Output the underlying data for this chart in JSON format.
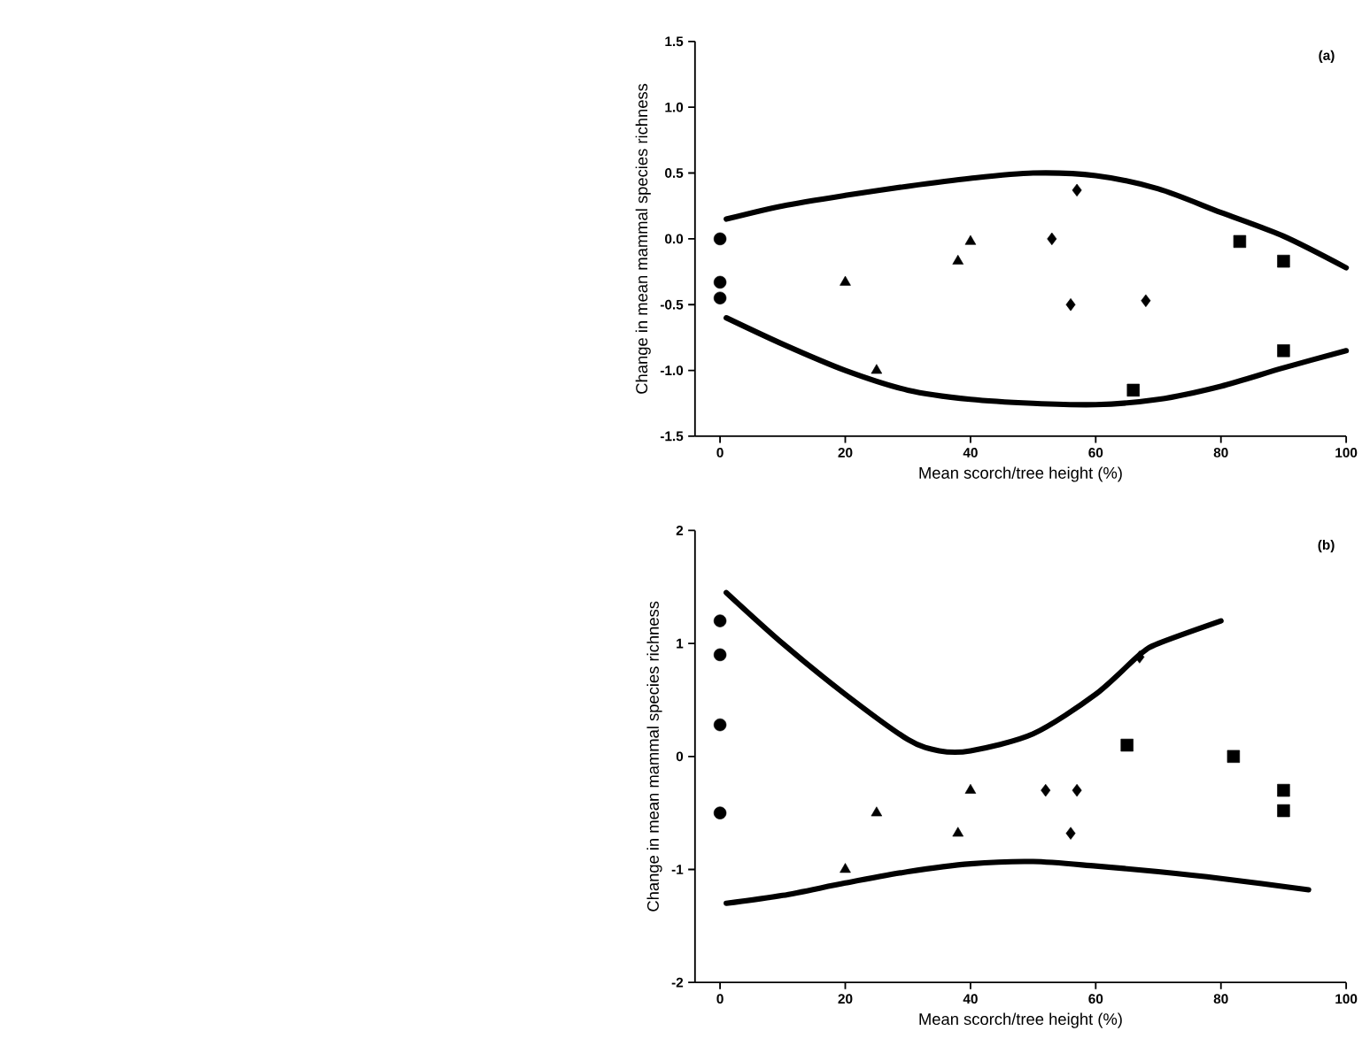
{
  "chart_data": [
    {
      "type": "scatter",
      "xlabel": "Mean scorch/tree height (%)",
      "ylabel": "Change in mean mammal species richness",
      "annotations": [
        "(a)"
      ],
      "xlim": [
        -4,
        100
      ],
      "ylim": [
        -1.5,
        1.5
      ],
      "xticks": [
        0,
        20,
        40,
        60,
        80,
        100
      ],
      "yticks": [
        -1.5,
        {
          "value": -1.0,
          "label": "-1.0"
        },
        -0.5,
        {
          "value": 0.0,
          "label": "0.0"
        },
        0.5,
        {
          "value": 1.0,
          "label": "1.0"
        },
        1.5
      ],
      "grid": false,
      "series": [
        {
          "marker": "circle",
          "color": "#000000",
          "x": [
            0,
            0,
            0
          ],
          "values": [
            0.0,
            -0.33,
            -0.45
          ]
        },
        {
          "marker": "triangle",
          "color": "#000000",
          "x": [
            20,
            25,
            38,
            40
          ],
          "values": [
            -0.33,
            -1.0,
            -0.17,
            -0.02
          ]
        },
        {
          "marker": "diamond",
          "color": "#000000",
          "x": [
            53,
            57,
            56,
            68
          ],
          "values": [
            0.0,
            0.37,
            -0.5,
            -0.47
          ]
        },
        {
          "marker": "square",
          "color": "#000000",
          "x": [
            83,
            90,
            90,
            66
          ],
          "values": [
            -0.02,
            -0.17,
            -0.85,
            -1.15
          ]
        },
        {
          "type": "line",
          "color": "#000000",
          "x": [
            1,
            10,
            20,
            30,
            40,
            50,
            60,
            70,
            80,
            90,
            100
          ],
          "values": [
            0.15,
            0.25,
            0.33,
            0.4,
            0.46,
            0.5,
            0.48,
            0.38,
            0.2,
            0.02,
            -0.22
          ]
        },
        {
          "type": "line",
          "color": "#000000",
          "x": [
            1,
            10,
            20,
            30,
            40,
            50,
            60,
            70,
            80,
            90,
            100
          ],
          "values": [
            -0.6,
            -0.8,
            -1.0,
            -1.15,
            -1.22,
            -1.25,
            -1.26,
            -1.22,
            -1.12,
            -0.98,
            -0.85
          ]
        }
      ]
    },
    {
      "type": "scatter",
      "xlabel": "Mean scorch/tree height (%)",
      "ylabel": "Change in mean mammal species richness",
      "annotations": [
        "(b)"
      ],
      "xlim": [
        -4,
        100
      ],
      "ylim": [
        -2,
        2
      ],
      "xticks": [
        0,
        20,
        40,
        60,
        80,
        100
      ],
      "yticks": [
        -2,
        -1,
        0,
        1,
        2
      ],
      "grid": false,
      "series": [
        {
          "marker": "circle",
          "color": "#000000",
          "x": [
            0,
            0,
            0,
            0
          ],
          "values": [
            1.2,
            0.9,
            0.28,
            -0.5
          ]
        },
        {
          "marker": "triangle",
          "color": "#000000",
          "x": [
            20,
            25,
            38,
            40
          ],
          "values": [
            -1.0,
            -0.5,
            -0.68,
            -0.3
          ]
        },
        {
          "marker": "diamond",
          "color": "#000000",
          "x": [
            52,
            57,
            56,
            67
          ],
          "values": [
            -0.3,
            -0.3,
            -0.68,
            0.88
          ]
        },
        {
          "marker": "square",
          "color": "#000000",
          "x": [
            65,
            82,
            90,
            90
          ],
          "values": [
            0.1,
            0.0,
            -0.3,
            -0.48
          ]
        },
        {
          "type": "line",
          "color": "#000000",
          "x": [
            1,
            10,
            20,
            30,
            35,
            40,
            50,
            60,
            67,
            70,
            80
          ],
          "values": [
            1.45,
            1.0,
            0.55,
            0.15,
            0.05,
            0.05,
            0.2,
            0.55,
            0.9,
            1.0,
            1.2
          ]
        },
        {
          "type": "line",
          "color": "#000000",
          "x": [
            1,
            10,
            20,
            30,
            40,
            50,
            60,
            70,
            80,
            94
          ],
          "values": [
            -1.3,
            -1.23,
            -1.12,
            -1.02,
            -0.95,
            -0.93,
            -0.97,
            -1.02,
            -1.08,
            -1.18
          ]
        }
      ]
    }
  ]
}
